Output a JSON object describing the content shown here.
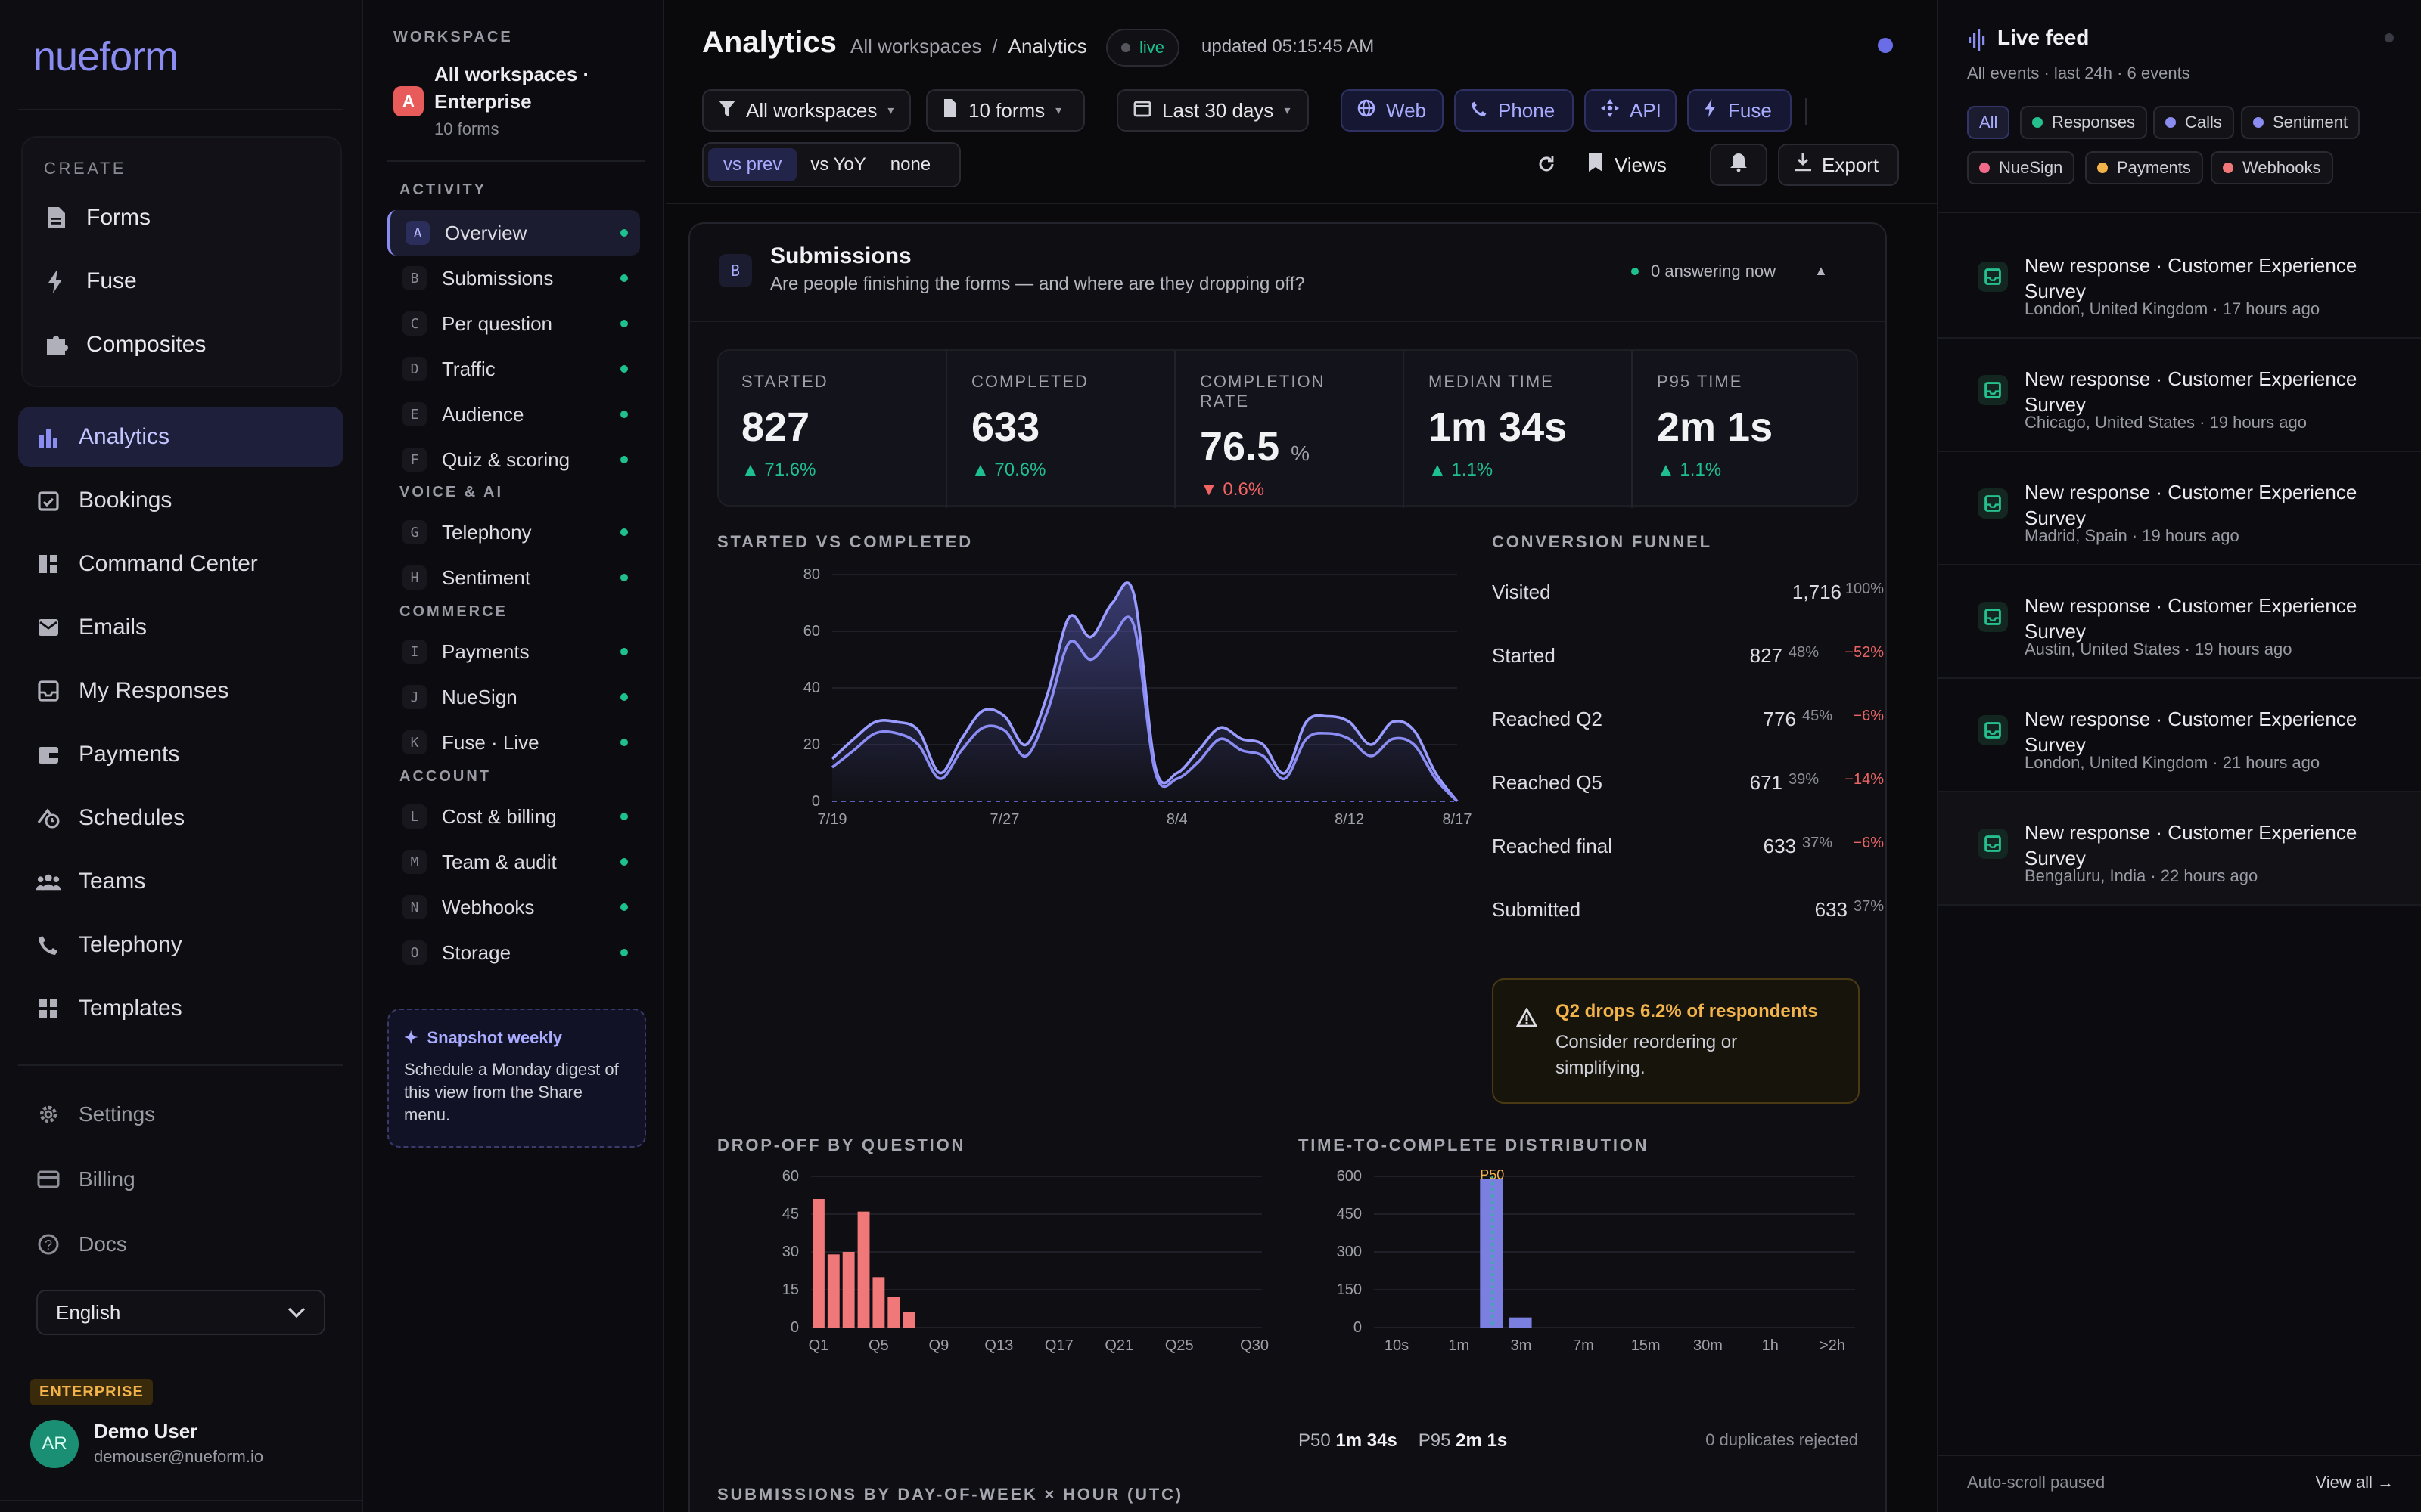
{
  "nav": {
    "logo": "nueform",
    "create_label": "CREATE",
    "create_items": [
      {
        "label": "Forms",
        "icon": "document-icon"
      },
      {
        "label": "Fuse",
        "icon": "bolt-icon"
      },
      {
        "label": "Composites",
        "icon": "puzzle-icon"
      }
    ],
    "items": [
      {
        "label": "Analytics",
        "icon": "bar-chart-icon",
        "active": true
      },
      {
        "label": "Bookings",
        "icon": "calendar-check-icon"
      },
      {
        "label": "Command Center",
        "icon": "dashboard-icon"
      },
      {
        "label": "Emails",
        "icon": "mail-icon"
      },
      {
        "label": "My Responses",
        "icon": "inbox-icon"
      },
      {
        "label": "Payments",
        "icon": "wallet-icon"
      },
      {
        "label": "Schedules",
        "icon": "schedule-icon"
      },
      {
        "label": "Teams",
        "icon": "team-icon"
      },
      {
        "label": "Telephony",
        "icon": "phone-icon"
      },
      {
        "label": "Templates",
        "icon": "grid-icon"
      }
    ],
    "secondary": [
      {
        "label": "Settings",
        "icon": "gear-icon"
      },
      {
        "label": "Billing",
        "icon": "credit-card-icon"
      },
      {
        "label": "Docs",
        "icon": "help-icon"
      }
    ],
    "language": "English",
    "plan_badge": "ENTERPRISE",
    "user": {
      "initials": "AR",
      "name": "Demo User",
      "email": "demouser@nueform.io"
    }
  },
  "sections": {
    "workspace_label": "WORKSPACE",
    "workspace_badge": "A",
    "workspace_name_1": "All workspaces ·",
    "workspace_name_2": "Enterprise",
    "workspace_forms": "10 forms",
    "groups": [
      {
        "title": "ACTIVITY",
        "items": [
          {
            "key": "A",
            "label": "Overview",
            "active": true
          },
          {
            "key": "B",
            "label": "Submissions"
          },
          {
            "key": "C",
            "label": "Per question"
          },
          {
            "key": "D",
            "label": "Traffic"
          },
          {
            "key": "E",
            "label": "Audience"
          },
          {
            "key": "F",
            "label": "Quiz & scoring"
          }
        ]
      },
      {
        "title": "VOICE & AI",
        "items": [
          {
            "key": "G",
            "label": "Telephony"
          },
          {
            "key": "H",
            "label": "Sentiment"
          }
        ]
      },
      {
        "title": "COMMERCE",
        "items": [
          {
            "key": "I",
            "label": "Payments"
          },
          {
            "key": "J",
            "label": "NueSign"
          },
          {
            "key": "K",
            "label": "Fuse · Live"
          }
        ]
      },
      {
        "title": "ACCOUNT",
        "items": [
          {
            "key": "L",
            "label": "Cost & billing"
          },
          {
            "key": "M",
            "label": "Team & audit"
          },
          {
            "key": "N",
            "label": "Webhooks"
          },
          {
            "key": "O",
            "label": "Storage"
          }
        ]
      }
    ],
    "snapshot_title": "Snapshot weekly",
    "snapshot_text": "Schedule a Monday digest of this view from the Share menu."
  },
  "header": {
    "title": "Analytics",
    "crumb_root": "All workspaces",
    "crumb_sep": "/",
    "crumb_current": "Analytics",
    "live": "live",
    "updated": "updated 05:15:45 AM",
    "filters": {
      "workspace": "All workspaces",
      "forms": "10 forms",
      "range": "Last 30 days"
    },
    "sources": [
      {
        "label": "Web",
        "icon": "globe-icon"
      },
      {
        "label": "Phone",
        "icon": "phone-icon"
      },
      {
        "label": "API",
        "icon": "api-icon"
      },
      {
        "label": "Fuse",
        "icon": "bolt-icon"
      }
    ],
    "compare": [
      "vs prev",
      "vs YoY",
      "none"
    ],
    "compare_active": "vs prev",
    "views": "Views",
    "export": "Export"
  },
  "submissions": {
    "badge": "B",
    "title": "Submissions",
    "subtitle": "Are people finishing the forms — and where are they dropping off?",
    "answering": "0 answering now",
    "kpis": [
      {
        "label": "STARTED",
        "value": "827",
        "unit": "",
        "delta": "▲ 71.6%",
        "up": true
      },
      {
        "label": "COMPLETED",
        "value": "633",
        "unit": "",
        "delta": "▲ 70.6%",
        "up": true
      },
      {
        "label": "COMPLETION RATE",
        "value": "76.5",
        "unit": "%",
        "delta": "▼ 0.6%",
        "up": false
      },
      {
        "label": "MEDIAN TIME",
        "value": "1m 34s",
        "unit": "",
        "delta": "▲ 1.1%",
        "up": true
      },
      {
        "label": "P95 TIME",
        "value": "2m 1s",
        "unit": "",
        "delta": "▲ 1.1%",
        "up": true
      }
    ],
    "line_title": "STARTED VS COMPLETED",
    "funnel_title": "CONVERSION FUNNEL",
    "funnel": [
      {
        "label": "Visited",
        "count": "1,716",
        "pct": "100%",
        "drop": ""
      },
      {
        "label": "Started",
        "count": "827",
        "pct": "48%",
        "drop": "−52%"
      },
      {
        "label": "Reached Q2",
        "count": "776",
        "pct": "45%",
        "drop": "−6%"
      },
      {
        "label": "Reached Q5",
        "count": "671",
        "pct": "39%",
        "drop": "−14%"
      },
      {
        "label": "Reached final",
        "count": "633",
        "pct": "37%",
        "drop": "−6%"
      },
      {
        "label": "Submitted",
        "count": "633",
        "pct": "37%",
        "drop": ""
      }
    ],
    "alert_title": "Q2 drops 6.2% of respondents",
    "alert_text": "Consider reordering or simplifying.",
    "dropoff_title": "DROP-OFF BY QUESTION",
    "ttc_title": "TIME-TO-COMPLETE DISTRIBUTION",
    "p50_label": "P50",
    "p50_value": "1m 34s",
    "p95_label": "P95",
    "p95_value": "2m 1s",
    "duplicates": "0 duplicates rejected",
    "heatmap_title": "SUBMISSIONS BY DAY-OF-WEEK × HOUR (UTC)"
  },
  "chart_data": [
    {
      "type": "area",
      "title": "STARTED VS COMPLETED",
      "x": [
        "7/19",
        "7/20",
        "7/21",
        "7/22",
        "7/23",
        "7/24",
        "7/25",
        "7/26",
        "7/27",
        "7/28",
        "7/29",
        "7/30",
        "7/31",
        "8/1",
        "8/2",
        "8/3",
        "8/4",
        "8/5",
        "8/6",
        "8/7",
        "8/8",
        "8/9",
        "8/10",
        "8/11",
        "8/12",
        "8/13",
        "8/14",
        "8/15",
        "8/16",
        "8/17"
      ],
      "x_ticks": [
        "7/19",
        "7/27",
        "8/4",
        "8/12",
        "8/17"
      ],
      "y_ticks": [
        0,
        20,
        40,
        60,
        80
      ],
      "ylim": [
        0,
        80
      ],
      "series": [
        {
          "values": [
            15,
            22,
            28,
            28,
            25,
            10,
            22,
            32,
            30,
            20,
            38,
            65,
            58,
            70,
            73,
            12,
            10,
            18,
            26,
            22,
            20,
            10,
            28,
            30,
            28,
            20,
            28,
            25,
            10,
            0
          ]
        },
        {
          "values": [
            12,
            18,
            24,
            24,
            20,
            8,
            18,
            26,
            25,
            16,
            32,
            56,
            50,
            58,
            62,
            10,
            8,
            14,
            22,
            18,
            16,
            8,
            22,
            24,
            22,
            16,
            22,
            20,
            8,
            0
          ]
        }
      ]
    },
    {
      "type": "bar",
      "title": "DROP-OFF BY QUESTION",
      "categories": [
        "Q1",
        "Q2",
        "Q3",
        "Q4",
        "Q5",
        "Q6",
        "Q7",
        "Q8",
        "Q9"
      ],
      "x_ticks": [
        "Q1",
        "Q5",
        "Q9",
        "Q13",
        "Q17",
        "Q21",
        "Q25",
        "Q30"
      ],
      "values": [
        51,
        29,
        30,
        46,
        20,
        12,
        6,
        0,
        0
      ],
      "y_ticks": [
        0,
        15,
        30,
        45,
        60
      ],
      "ylim": [
        0,
        60
      ],
      "color": "#f07878"
    },
    {
      "type": "bar",
      "title": "TIME-TO-COMPLETE DISTRIBUTION",
      "categories": [
        "10s",
        "1m",
        "3m",
        "7m",
        "15m",
        "30m",
        "1h",
        ">2h"
      ],
      "bins": [
        {
          "label": "1m–3m",
          "value": 590
        },
        {
          "label": "3m",
          "value": 40
        }
      ],
      "y_ticks": [
        0,
        150,
        300,
        450,
        600
      ],
      "ylim": [
        0,
        600
      ],
      "marker": "P50",
      "color": "#7b7fe0"
    }
  ],
  "feed": {
    "title": "Live feed",
    "subtitle": "All events · last 24h · 6 events",
    "filters": [
      {
        "label": "All",
        "color": ""
      },
      {
        "label": "Responses",
        "color": "#26c08f"
      },
      {
        "label": "Calls",
        "color": "#8b8cf0"
      },
      {
        "label": "Sentiment",
        "color": "#8b8cf0"
      },
      {
        "label": "NueSign",
        "color": "#f06a8a"
      },
      {
        "label": "Payments",
        "color": "#f2b44a"
      },
      {
        "label": "Webhooks",
        "color": "#f07878"
      }
    ],
    "items": [
      {
        "title": "New response · Customer Experience Survey",
        "meta": "London, United Kingdom · 17 hours ago"
      },
      {
        "title": "New response · Customer Experience Survey",
        "meta": "Chicago, United States · 19 hours ago"
      },
      {
        "title": "New response · Customer Experience Survey",
        "meta": "Madrid, Spain · 19 hours ago"
      },
      {
        "title": "New response · Customer Experience Survey",
        "meta": "Austin, United States · 19 hours ago"
      },
      {
        "title": "New response · Customer Experience Survey",
        "meta": "London, United Kingdom · 21 hours ago"
      },
      {
        "title": "New response · Customer Experience Survey",
        "meta": "Bengaluru, India · 22 hours ago"
      }
    ],
    "footer": "Auto-scroll paused",
    "view_all": "View all →"
  }
}
